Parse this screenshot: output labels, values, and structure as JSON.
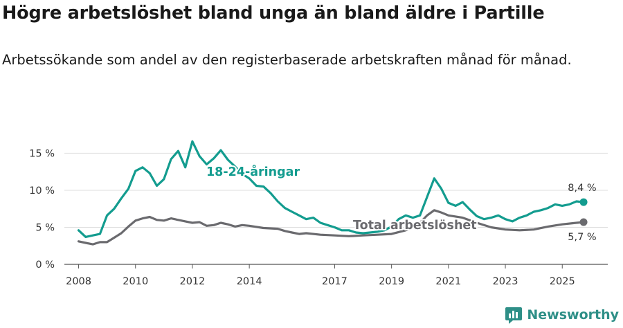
{
  "title": "Högre arbetslöshet bland unga än bland äldre i Partille",
  "subtitle": "Arbetssökande som andel av den registerbaserade arbetskraften månad för månad.",
  "brand": {
    "name": "Newsworthy",
    "color": "#2e8f87"
  },
  "chart_data": {
    "type": "line",
    "title": "Högre arbetslöshet bland unga än bland äldre i Partille",
    "xlabel": "",
    "ylabel": "",
    "ylim": [
      0,
      17
    ],
    "xlim": [
      2007.5,
      2026.6
    ],
    "grid": true,
    "x_ticks": [
      {
        "value": 2008,
        "label": "2008"
      },
      {
        "value": 2010,
        "label": "2010"
      },
      {
        "value": 2012,
        "label": "2012"
      },
      {
        "value": 2014,
        "label": "2014"
      },
      {
        "value": 2017,
        "label": "2017"
      },
      {
        "value": 2019,
        "label": "2019"
      },
      {
        "value": 2021,
        "label": "2021"
      },
      {
        "value": 2023,
        "label": "2023"
      },
      {
        "value": 2025,
        "label": "2025"
      }
    ],
    "y_ticks": [
      {
        "value": 0,
        "label": "0 %"
      },
      {
        "value": 5,
        "label": "5 %"
      },
      {
        "value": 10,
        "label": "10 %"
      },
      {
        "value": 15,
        "label": "15 %"
      }
    ],
    "series": [
      {
        "name": "Total arbetslöshet",
        "label": "Total arbetslöshet",
        "color": "#6a6a6e",
        "end_label": "5,7 %",
        "points": [
          [
            2008.0,
            3.1
          ],
          [
            2008.25,
            2.9
          ],
          [
            2008.5,
            2.7
          ],
          [
            2008.75,
            3.0
          ],
          [
            2009.0,
            3.0
          ],
          [
            2009.25,
            3.6
          ],
          [
            2009.5,
            4.2
          ],
          [
            2009.75,
            5.1
          ],
          [
            2010.0,
            5.9
          ],
          [
            2010.25,
            6.2
          ],
          [
            2010.5,
            6.4
          ],
          [
            2010.75,
            6.0
          ],
          [
            2011.0,
            5.9
          ],
          [
            2011.25,
            6.2
          ],
          [
            2011.5,
            6.0
          ],
          [
            2011.75,
            5.8
          ],
          [
            2012.0,
            5.6
          ],
          [
            2012.25,
            5.7
          ],
          [
            2012.5,
            5.2
          ],
          [
            2012.75,
            5.3
          ],
          [
            2013.0,
            5.6
          ],
          [
            2013.25,
            5.4
          ],
          [
            2013.5,
            5.1
          ],
          [
            2013.75,
            5.3
          ],
          [
            2014.0,
            5.2
          ],
          [
            2014.5,
            4.9
          ],
          [
            2015.0,
            4.8
          ],
          [
            2015.25,
            4.5
          ],
          [
            2015.5,
            4.3
          ],
          [
            2015.75,
            4.1
          ],
          [
            2016.0,
            4.2
          ],
          [
            2016.5,
            4.0
          ],
          [
            2017.0,
            3.9
          ],
          [
            2017.5,
            3.8
          ],
          [
            2018.0,
            3.9
          ],
          [
            2018.5,
            4.0
          ],
          [
            2019.0,
            4.1
          ],
          [
            2019.5,
            4.6
          ],
          [
            2019.75,
            5.0
          ],
          [
            2020.0,
            5.6
          ],
          [
            2020.25,
            6.6
          ],
          [
            2020.5,
            7.3
          ],
          [
            2020.75,
            7.0
          ],
          [
            2021.0,
            6.6
          ],
          [
            2021.5,
            6.3
          ],
          [
            2022.0,
            5.6
          ],
          [
            2022.5,
            5.0
          ],
          [
            2023.0,
            4.7
          ],
          [
            2023.5,
            4.6
          ],
          [
            2024.0,
            4.7
          ],
          [
            2024.5,
            5.1
          ],
          [
            2025.0,
            5.4
          ],
          [
            2025.5,
            5.6
          ],
          [
            2025.75,
            5.7
          ]
        ]
      },
      {
        "name": "18-24-åringar",
        "label": "18-24-åringar",
        "color": "#139c8f",
        "end_label": "8,4 %",
        "points": [
          [
            2008.0,
            4.6
          ],
          [
            2008.25,
            3.7
          ],
          [
            2008.5,
            3.9
          ],
          [
            2008.75,
            4.1
          ],
          [
            2009.0,
            6.6
          ],
          [
            2009.25,
            7.5
          ],
          [
            2009.5,
            8.9
          ],
          [
            2009.75,
            10.2
          ],
          [
            2010.0,
            12.6
          ],
          [
            2010.25,
            13.1
          ],
          [
            2010.5,
            12.3
          ],
          [
            2010.75,
            10.6
          ],
          [
            2011.0,
            11.5
          ],
          [
            2011.25,
            14.2
          ],
          [
            2011.5,
            15.3
          ],
          [
            2011.75,
            13.1
          ],
          [
            2012.0,
            16.6
          ],
          [
            2012.25,
            14.6
          ],
          [
            2012.5,
            13.5
          ],
          [
            2012.75,
            14.3
          ],
          [
            2013.0,
            15.4
          ],
          [
            2013.25,
            14.1
          ],
          [
            2013.5,
            13.2
          ],
          [
            2013.75,
            12.2
          ],
          [
            2014.0,
            11.6
          ],
          [
            2014.25,
            10.6
          ],
          [
            2014.5,
            10.5
          ],
          [
            2014.75,
            9.6
          ],
          [
            2015.0,
            8.5
          ],
          [
            2015.25,
            7.6
          ],
          [
            2015.5,
            7.1
          ],
          [
            2015.75,
            6.6
          ],
          [
            2016.0,
            6.1
          ],
          [
            2016.25,
            6.3
          ],
          [
            2016.5,
            5.6
          ],
          [
            2016.75,
            5.3
          ],
          [
            2017.0,
            5.0
          ],
          [
            2017.25,
            4.6
          ],
          [
            2017.5,
            4.6
          ],
          [
            2017.75,
            4.3
          ],
          [
            2018.0,
            4.2
          ],
          [
            2018.25,
            4.3
          ],
          [
            2018.5,
            4.4
          ],
          [
            2018.75,
            4.6
          ],
          [
            2019.0,
            5.1
          ],
          [
            2019.25,
            6.1
          ],
          [
            2019.5,
            6.6
          ],
          [
            2019.75,
            6.3
          ],
          [
            2020.0,
            6.6
          ],
          [
            2020.25,
            9.1
          ],
          [
            2020.5,
            11.6
          ],
          [
            2020.75,
            10.2
          ],
          [
            2021.0,
            8.3
          ],
          [
            2021.25,
            7.9
          ],
          [
            2021.5,
            8.4
          ],
          [
            2021.75,
            7.4
          ],
          [
            2022.0,
            6.5
          ],
          [
            2022.25,
            6.1
          ],
          [
            2022.5,
            6.3
          ],
          [
            2022.75,
            6.6
          ],
          [
            2023.0,
            6.1
          ],
          [
            2023.25,
            5.8
          ],
          [
            2023.5,
            6.3
          ],
          [
            2023.75,
            6.6
          ],
          [
            2024.0,
            7.1
          ],
          [
            2024.25,
            7.3
          ],
          [
            2024.5,
            7.6
          ],
          [
            2024.75,
            8.1
          ],
          [
            2025.0,
            7.9
          ],
          [
            2025.25,
            8.1
          ],
          [
            2025.5,
            8.5
          ],
          [
            2025.75,
            8.4
          ]
        ]
      }
    ]
  }
}
